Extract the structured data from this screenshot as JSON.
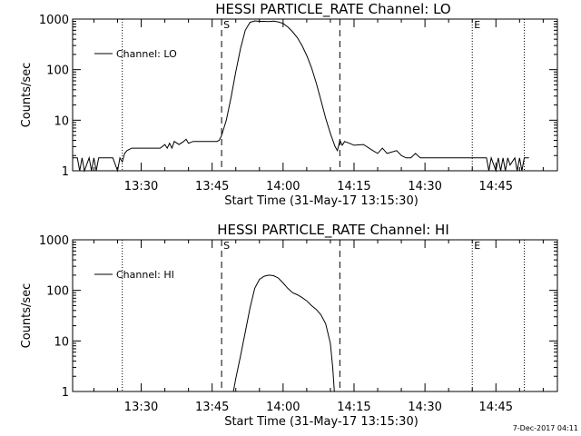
{
  "footer": {
    "timestamp": "7-Dec-2017 04:11"
  },
  "chart_data": [
    {
      "type": "line",
      "title": "HESSI PARTICLE_RATE Channel: LO",
      "xlabel": "Start Time (31-May-17 13:15:30)",
      "ylabel": "Counts/sec",
      "yscale": "log",
      "ylim": [
        1,
        1000
      ],
      "xlim": [
        "13:15:30",
        "14:58:00"
      ],
      "x_ticks": [
        "13:30",
        "13:45",
        "14:00",
        "14:15",
        "14:30",
        "14:45"
      ],
      "y_ticks": [
        "1",
        "10",
        "100",
        "1000"
      ],
      "legend": {
        "position": "top-left",
        "entries": [
          "Channel: LO"
        ]
      },
      "markers": [
        {
          "label": "S",
          "time": "13:47",
          "style": "dashed"
        },
        {
          "label": "",
          "time": "14:12",
          "style": "dashed"
        },
        {
          "label": "",
          "time": "13:26",
          "style": "dotted"
        },
        {
          "label": "E",
          "time": "14:40",
          "style": "dotted"
        },
        {
          "label": "",
          "time": "14:51",
          "style": "dotted"
        }
      ],
      "series": [
        {
          "name": "Channel: LO",
          "x": [
            "13:15:30",
            "13:16:30",
            "13:17:00",
            "13:17:30",
            "13:18:00",
            "13:19:00",
            "13:19:30",
            "13:20:00",
            "13:20:30",
            "13:21:00",
            "13:24:00",
            "13:25:00",
            "13:25:30",
            "13:26:00",
            "13:26:30",
            "13:27:00",
            "13:28:00",
            "13:34:00",
            "13:35:00",
            "13:35:30",
            "13:36:00",
            "13:36:30",
            "13:37:00",
            "13:38:00",
            "13:39:00",
            "13:39:30",
            "13:40:00",
            "13:41:00",
            "13:46:00",
            "13:46:30",
            "13:47:00",
            "13:48:00",
            "13:49:00",
            "13:50:00",
            "13:51:00",
            "13:52:00",
            "13:53:00",
            "13:54:00",
            "13:55:00",
            "13:56:00",
            "13:57:00",
            "13:58:00",
            "13:59:00",
            "14:00:00",
            "14:01:00",
            "14:02:00",
            "14:03:00",
            "14:04:00",
            "14:05:00",
            "14:06:00",
            "14:07:00",
            "14:08:00",
            "14:09:00",
            "14:10:00",
            "14:11:00",
            "14:11:30",
            "14:12:00",
            "14:12:30",
            "14:13:00",
            "14:14:00",
            "14:15:00",
            "14:17:00",
            "14:19:00",
            "14:20:00",
            "14:21:00",
            "14:22:00",
            "14:24:00",
            "14:25:00",
            "14:26:00",
            "14:27:00",
            "14:28:00",
            "14:29:00",
            "14:30:00",
            "14:33:00",
            "14:36:00",
            "14:39:00",
            "14:42:00",
            "14:43:00",
            "14:43:30",
            "14:44:00",
            "14:45:00",
            "14:45:30",
            "14:46:00",
            "14:46:30",
            "14:47:00",
            "14:47:30",
            "14:48:00",
            "14:49:00",
            "14:49:30",
            "14:50:00",
            "14:50:30",
            "14:51:00",
            "14:52:00"
          ],
          "y": [
            1.8,
            1.8,
            1,
            1.8,
            1,
            1.8,
            1,
            1.8,
            1,
            1.8,
            1.8,
            1,
            1.8,
            1.5,
            2.2,
            2.5,
            2.8,
            2.8,
            3.3,
            2.8,
            3.5,
            2.8,
            3.8,
            3.3,
            3.8,
            4.2,
            3.5,
            3.8,
            3.8,
            4.0,
            5,
            10,
            28,
            90,
            260,
            600,
            860,
            920,
            900,
            900,
            890,
            910,
            880,
            820,
            700,
            560,
            430,
            300,
            190,
            110,
            55,
            25,
            11,
            5.5,
            3.0,
            2.5,
            4,
            3.2,
            3.8,
            3.5,
            3.2,
            3.3,
            2.5,
            2.2,
            2.8,
            2.2,
            2.5,
            2.0,
            1.8,
            1.8,
            2.2,
            1.8,
            1.8,
            1.8,
            1.8,
            1.8,
            1.8,
            1.8,
            1,
            1.8,
            1,
            1.8,
            1,
            1.8,
            1,
            1.8,
            1.3,
            1.8,
            1,
            1.8,
            1,
            1.8,
            1.8
          ]
        }
      ]
    },
    {
      "type": "line",
      "title": "HESSI PARTICLE_RATE Channel: HI",
      "xlabel": "Start Time (31-May-17 13:15:30)",
      "ylabel": "Counts/sec",
      "yscale": "log",
      "ylim": [
        1,
        1000
      ],
      "xlim": [
        "13:15:30",
        "14:58:00"
      ],
      "x_ticks": [
        "13:30",
        "13:45",
        "14:00",
        "14:15",
        "14:30",
        "14:45"
      ],
      "y_ticks": [
        "1",
        "10",
        "100",
        "1000"
      ],
      "legend": {
        "position": "top-left",
        "entries": [
          "Channel: HI"
        ]
      },
      "markers": [
        {
          "label": "S",
          "time": "13:47",
          "style": "dashed"
        },
        {
          "label": "",
          "time": "14:12",
          "style": "dashed"
        },
        {
          "label": "",
          "time": "13:26",
          "style": "dotted"
        },
        {
          "label": "E",
          "time": "14:40",
          "style": "dotted"
        },
        {
          "label": "",
          "time": "14:51",
          "style": "dotted"
        }
      ],
      "series": [
        {
          "name": "Channel: HI",
          "x": [
            "13:49:30",
            "13:50:00",
            "13:51:00",
            "13:52:00",
            "13:53:00",
            "13:54:00",
            "13:55:00",
            "13:56:00",
            "13:57:00",
            "13:58:00",
            "13:59:00",
            "14:00:00",
            "14:01:00",
            "14:02:00",
            "14:03:00",
            "14:04:00",
            "14:05:00",
            "14:06:00",
            "14:07:00",
            "14:08:00",
            "14:09:00",
            "14:10:00",
            "14:10:30",
            "14:10:50"
          ],
          "y": [
            1,
            1.8,
            5,
            15,
            45,
            110,
            165,
            190,
            200,
            195,
            175,
            140,
            110,
            90,
            82,
            72,
            62,
            50,
            42,
            33,
            22,
            9,
            3,
            1
          ]
        }
      ]
    }
  ]
}
